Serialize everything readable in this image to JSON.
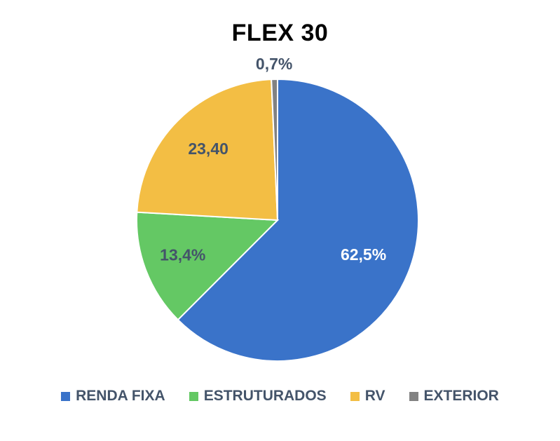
{
  "chart_data": {
    "type": "pie",
    "title": "FLEX 30",
    "categories": [
      "RENDA FIXA",
      "ESTRUTURADOS",
      "RV",
      "EXTERIOR"
    ],
    "values": [
      62.5,
      13.4,
      23.4,
      0.7
    ],
    "data_labels": [
      "62,5%",
      "13,4%",
      "23,40",
      "0,7%"
    ],
    "colors": [
      "#3a73c9",
      "#64c864",
      "#f3be44",
      "#828282"
    ],
    "label_colors": [
      "#ffffff",
      "#44546a",
      "#44546a",
      "#44546a"
    ],
    "start_angle_deg": 0,
    "direction": "clockwise",
    "legend_position": "bottom"
  }
}
